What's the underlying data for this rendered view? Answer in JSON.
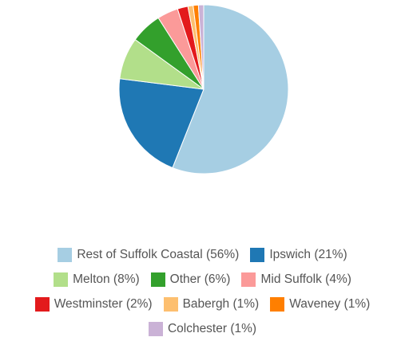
{
  "chart_data": {
    "type": "pie",
    "categories": [
      "Rest of Suffolk Coastal (56%)",
      "Ipswich (21%)",
      "Melton (8%)",
      "Other (6%)",
      "Mid Suffolk (4%)",
      "Westminster (2%)",
      "Babergh (1%)",
      "Waveney (1%)",
      "Colchester (1%)"
    ],
    "values": [
      56,
      21,
      8,
      6,
      4,
      2,
      1,
      1,
      1
    ],
    "colors": [
      "#a6cee3",
      "#1f78b4",
      "#b2df8a",
      "#33a02c",
      "#fb9a99",
      "#e31a1c",
      "#fdbf6f",
      "#ff7f00",
      "#cab2d6"
    ]
  }
}
